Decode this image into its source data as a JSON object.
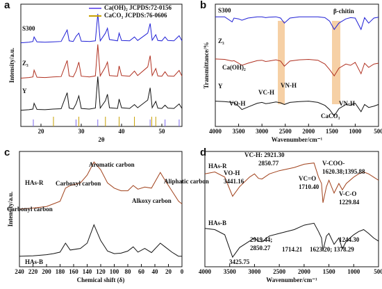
{
  "chart_data": [
    {
      "type": "line",
      "panel": "a",
      "x_label": "2θ",
      "y_label": "Intensity/a.u.",
      "xlim": [
        15,
        55
      ],
      "xticks": [
        20,
        30,
        40,
        50
      ],
      "ylim": [
        40,
        420
      ],
      "x": [
        15,
        17,
        18,
        18.3,
        19,
        21,
        23,
        25,
        26.5,
        27,
        28,
        28.7,
        29.4,
        30,
        32,
        33.5,
        34.1,
        34.7,
        36,
        36.5,
        37,
        39,
        39.4,
        40,
        42,
        43.2,
        44,
        46.5,
        47.1,
        47.6,
        48.5,
        49,
        50,
        50.8,
        51.5,
        53,
        54.3,
        55
      ],
      "series": [
        {
          "name": "S300",
          "color": "#1f1fd6",
          "values": [
            300,
            302,
            304,
            318,
            303,
            302,
            303,
            304,
            340,
            306,
            304,
            320,
            330,
            305,
            304,
            306,
            390,
            306,
            330,
            345,
            310,
            306,
            330,
            307,
            306,
            318,
            307,
            330,
            360,
            308,
            325,
            307,
            306,
            318,
            307,
            306,
            322,
            306
          ]
        },
        {
          "name": "Z₃",
          "color": "#b03020",
          "values": [
            190,
            192,
            194,
            215,
            193,
            192,
            194,
            195,
            245,
            197,
            194,
            212,
            240,
            196,
            194,
            197,
            295,
            197,
            225,
            240,
            198,
            196,
            228,
            198,
            196,
            212,
            198,
            225,
            260,
            198,
            220,
            197,
            196,
            210,
            197,
            196,
            214,
            196
          ]
        },
        {
          "name": "Y",
          "color": "#111111",
          "values": [
            90,
            92,
            94,
            112,
            93,
            92,
            94,
            95,
            145,
            97,
            94,
            110,
            135,
            96,
            94,
            97,
            195,
            97,
            120,
            140,
            98,
            96,
            125,
            98,
            96,
            108,
            98,
            122,
            160,
            98,
            118,
            97,
            96,
            106,
            97,
            96,
            110,
            96
          ]
        }
      ],
      "legend": [
        {
          "name": "Ca(OH)₂  JCPDS:72-0156",
          "color": "#7b68ee",
          "peaks": [
            18.1,
            28.7,
            34.1,
            47.1,
            50.8,
            54.3
          ]
        },
        {
          "name": "CaCO₃  JCPDS:76-0606",
          "color": "#c8a000",
          "peaks": [
            23.1,
            29.4,
            36.0,
            39.4,
            43.2,
            47.5,
            48.5
          ]
        }
      ]
    },
    {
      "type": "line",
      "panel": "b",
      "x_label": "Wavenumber/cm⁻¹",
      "y_label": "Transmittance/%",
      "xlim": [
        4000,
        500
      ],
      "xticks": [
        4000,
        3500,
        3000,
        2500,
        2000,
        1500,
        1000,
        500
      ],
      "ylim": [
        40,
        330
      ],
      "x": [
        4000,
        3800,
        3640,
        3600,
        3500,
        3430,
        3300,
        3100,
        3000,
        2920,
        2850,
        2700,
        2600,
        2520,
        2400,
        2200,
        2000,
        1800,
        1650,
        1550,
        1450,
        1350,
        1200,
        1100,
        1000,
        875,
        800,
        712,
        600,
        500
      ],
      "series": [
        {
          "name": "S300",
          "color": "#1f1fd6",
          "values": [
            300,
            300,
            288,
            297,
            295,
            292,
            297,
            300,
            300,
            298,
            299,
            300,
            297,
            285,
            297,
            300,
            300,
            300,
            298,
            290,
            270,
            285,
            295,
            298,
            297,
            270,
            298,
            285,
            297,
            299
          ]
        },
        {
          "name": "Z₃",
          "color": "#b03020",
          "values": [
            200,
            199,
            195,
            196,
            190,
            185,
            190,
            196,
            197,
            194,
            195,
            198,
            195,
            183,
            195,
            198,
            199,
            197,
            188,
            175,
            160,
            178,
            188,
            185,
            192,
            165,
            190,
            180,
            188,
            190
          ]
        },
        {
          "name": "Y",
          "color": "#111111",
          "values": [
            100,
            99,
            97,
            96,
            88,
            80,
            86,
            95,
            97,
            94,
            95,
            98,
            96,
            92,
            97,
            99,
            100,
            97,
            90,
            80,
            65,
            82,
            92,
            90,
            95,
            75,
            92,
            85,
            88,
            92
          ]
        }
      ],
      "annotations": [
        "Ca(OH)₂",
        "β-chitin",
        "VO-H",
        "VC-H",
        "VN-H",
        "VN-H",
        "CaCO₃"
      ]
    },
    {
      "type": "line",
      "panel": "c",
      "x_label": "Chemical shift (δ)",
      "y_label": "Intensity/a.u.",
      "xlim": [
        240,
        0
      ],
      "xticks": [
        240,
        220,
        200,
        180,
        160,
        140,
        120,
        100,
        80,
        60,
        40,
        20,
        0
      ],
      "ylim": [
        80,
        300
      ],
      "x": [
        240,
        220,
        200,
        190,
        180,
        172,
        165,
        150,
        140,
        130,
        120,
        110,
        100,
        90,
        80,
        72,
        65,
        55,
        45,
        32,
        25,
        15,
        5,
        0
      ],
      "series": [
        {
          "name": "HAs-R",
          "color": "#a0401a",
          "values": [
            190,
            192,
            195,
            200,
            205,
            230,
            235,
            240,
            255,
            280,
            265,
            240,
            230,
            225,
            225,
            235,
            228,
            232,
            230,
            260,
            245,
            225,
            205,
            200
          ]
        },
        {
          "name": "HAs-B",
          "color": "#111111",
          "values": [
            100,
            101,
            103,
            105,
            108,
            125,
            112,
            115,
            125,
            160,
            130,
            110,
            105,
            106,
            110,
            118,
            108,
            115,
            107,
            125,
            118,
            108,
            100,
            100
          ]
        }
      ],
      "annotations": [
        "Carbonyl carbon",
        "Carboxyl carbon",
        "Aromatic carbon",
        "Alkoxy carbon",
        "Aliphatic carbon"
      ]
    },
    {
      "type": "line",
      "panel": "d",
      "x_label": "Wavenumber/cm⁻¹",
      "y_label": "",
      "xlim": [
        4000,
        500
      ],
      "xticks": [
        4000,
        3500,
        3000,
        2500,
        2000,
        1500,
        1000,
        500
      ],
      "ylim": [
        60,
        240
      ],
      "x": [
        4000,
        3800,
        3600,
        3441,
        3300,
        3100,
        3000,
        2921,
        2850,
        2700,
        2500,
        2200,
        2000,
        1800,
        1710,
        1650,
        1620,
        1550,
        1500,
        1396,
        1300,
        1230,
        1150,
        1000,
        900,
        800,
        700,
        600,
        500
      ],
      "series": [
        {
          "name": "HAs-R",
          "color": "#a0401a",
          "values": [
            205,
            208,
            200,
            170,
            185,
            200,
            205,
            198,
            197,
            205,
            210,
            215,
            220,
            222,
            200,
            190,
            160,
            185,
            195,
            175,
            190,
            180,
            190,
            200,
            205,
            208,
            205,
            200,
            195
          ]
        },
        {
          "name": "HAs-B",
          "color": "#111111",
          "values": [
            120,
            118,
            110,
            75,
            90,
            100,
            105,
            100,
            99,
            108,
            112,
            118,
            125,
            128,
            115,
            105,
            85,
            108,
            112,
            95,
            105,
            88,
            100,
            110,
            115,
            118,
            112,
            105,
            100
          ]
        }
      ],
      "annotations": [
        "VC-H: 2921.30",
        "2850.77",
        "VO-H",
        "3441.16",
        "VC=O",
        "1710.40",
        "V-COO-",
        "1620.38;1395.88",
        "V-C-O",
        "1229.84",
        "2919.44;",
        "2850.27",
        "3425.75",
        "1714.21",
        "1623.20; 1378.29",
        "1244.30"
      ]
    }
  ]
}
